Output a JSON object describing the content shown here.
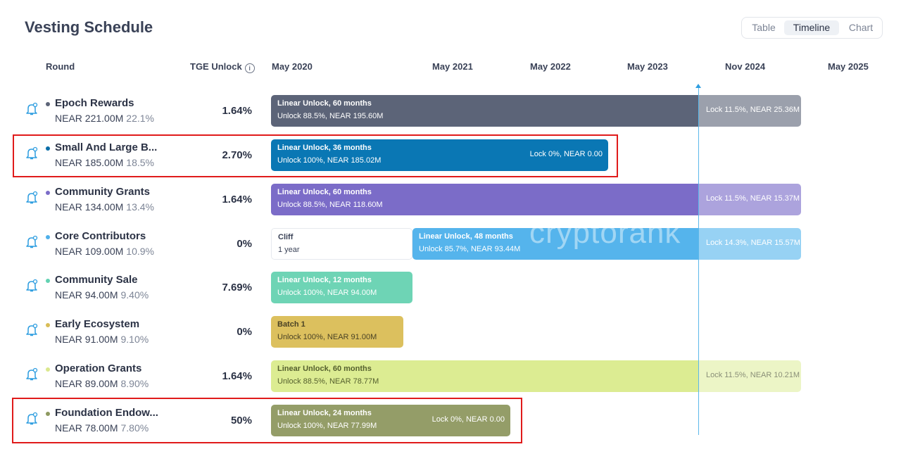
{
  "header": {
    "title": "Vesting Schedule",
    "view_tabs": [
      "Table",
      "Timeline",
      "Chart"
    ],
    "selected_tab": "Timeline"
  },
  "columns": {
    "round": "Round",
    "tge_unlock": "TGE Unlock",
    "info_icon": "info-icon"
  },
  "timeline": {
    "dates": [
      "May 2020",
      "May 2021",
      "May 2022",
      "May 2023",
      "Nov 2024",
      "May 2025"
    ]
  },
  "rows": [
    {
      "name": "Epoch Rewards",
      "amount": "NEAR 221.00M",
      "percent": "22.1%",
      "tge": "1.64%",
      "dot_color": "#5c6478",
      "bar_color": "#5c6478",
      "lock_color": "#9ba0ac",
      "unlock_title": "Linear Unlock, 60 months",
      "unlock_detail": "Unlock 88.5%, NEAR 195.60M",
      "lock": "Lock 11.5%, NEAR 25.36M"
    },
    {
      "name": "Small And Large B...",
      "amount": "NEAR 185.00M",
      "percent": "18.5%",
      "tge": "2.70%",
      "dot_color": "#0a6ea8",
      "bar_color": "#0a77b4",
      "unlock_title": "Linear Unlock, 36 months",
      "unlock_detail": "Unlock 100%, NEAR 185.02M",
      "lock": "Lock 0%, NEAR 0.00"
    },
    {
      "name": "Community Grants",
      "amount": "NEAR 134.00M",
      "percent": "13.4%",
      "tge": "1.64%",
      "dot_color": "#7b6cc8",
      "bar_color": "#7b6cc8",
      "lock_color": "#aca3dd",
      "unlock_title": "Linear Unlock, 60 months",
      "unlock_detail": "Unlock 88.5%, NEAR 118.60M",
      "lock": "Lock 11.5%, NEAR 15.37M"
    },
    {
      "name": "Core Contributors",
      "amount": "NEAR 109.00M",
      "percent": "10.9%",
      "tge": "0%",
      "dot_color": "#4fb0ea",
      "bar_color": "#55b4ec",
      "lock_color": "#97d2f4",
      "cliff_title": "Cliff",
      "cliff_detail": "1 year",
      "unlock_title": "Linear Unlock, 48 months",
      "unlock_detail": "Unlock 85.7%, NEAR 93.44M",
      "lock": "Lock 14.3%, NEAR 15.57M"
    },
    {
      "name": "Community Sale",
      "amount": "NEAR 94.00M",
      "percent": "9.40%",
      "tge": "7.69%",
      "dot_color": "#62d2b2",
      "bar_color": "#6ed4b5",
      "unlock_title": "Linear Unlock, 12 months",
      "unlock_detail": "Unlock 100%, NEAR 94.00M"
    },
    {
      "name": "Early Ecosystem",
      "amount": "NEAR 91.00M",
      "percent": "9.10%",
      "tge": "0%",
      "dot_color": "#d9bd56",
      "bar_color": "#dcc05e",
      "unlock_title": "Batch 1",
      "unlock_detail": "Unlock 100%, NEAR 91.00M"
    },
    {
      "name": "Operation Grants",
      "amount": "NEAR 89.00M",
      "percent": "8.90%",
      "tge": "1.64%",
      "dot_color": "#dbe88e",
      "bar_color": "#dcec92",
      "lock_color": "#ecf5c6",
      "unlock_title": "Linear Unlock, 60 months",
      "unlock_detail": "Unlock 88.5%, NEAR 78.77M",
      "lock": "Lock 11.5%, NEAR 10.21M"
    },
    {
      "name": "Foundation Endow...",
      "amount": "NEAR 78.00M",
      "percent": "7.80%",
      "tge": "50%",
      "dot_color": "#8e9960",
      "bar_color": "#949d68",
      "unlock_title": "Linear Unlock, 24 months",
      "unlock_detail": "Unlock 100%, NEAR 77.99M",
      "lock": "Lock 0%, NEAR 0.00"
    }
  ],
  "watermark": "cryptorank"
}
